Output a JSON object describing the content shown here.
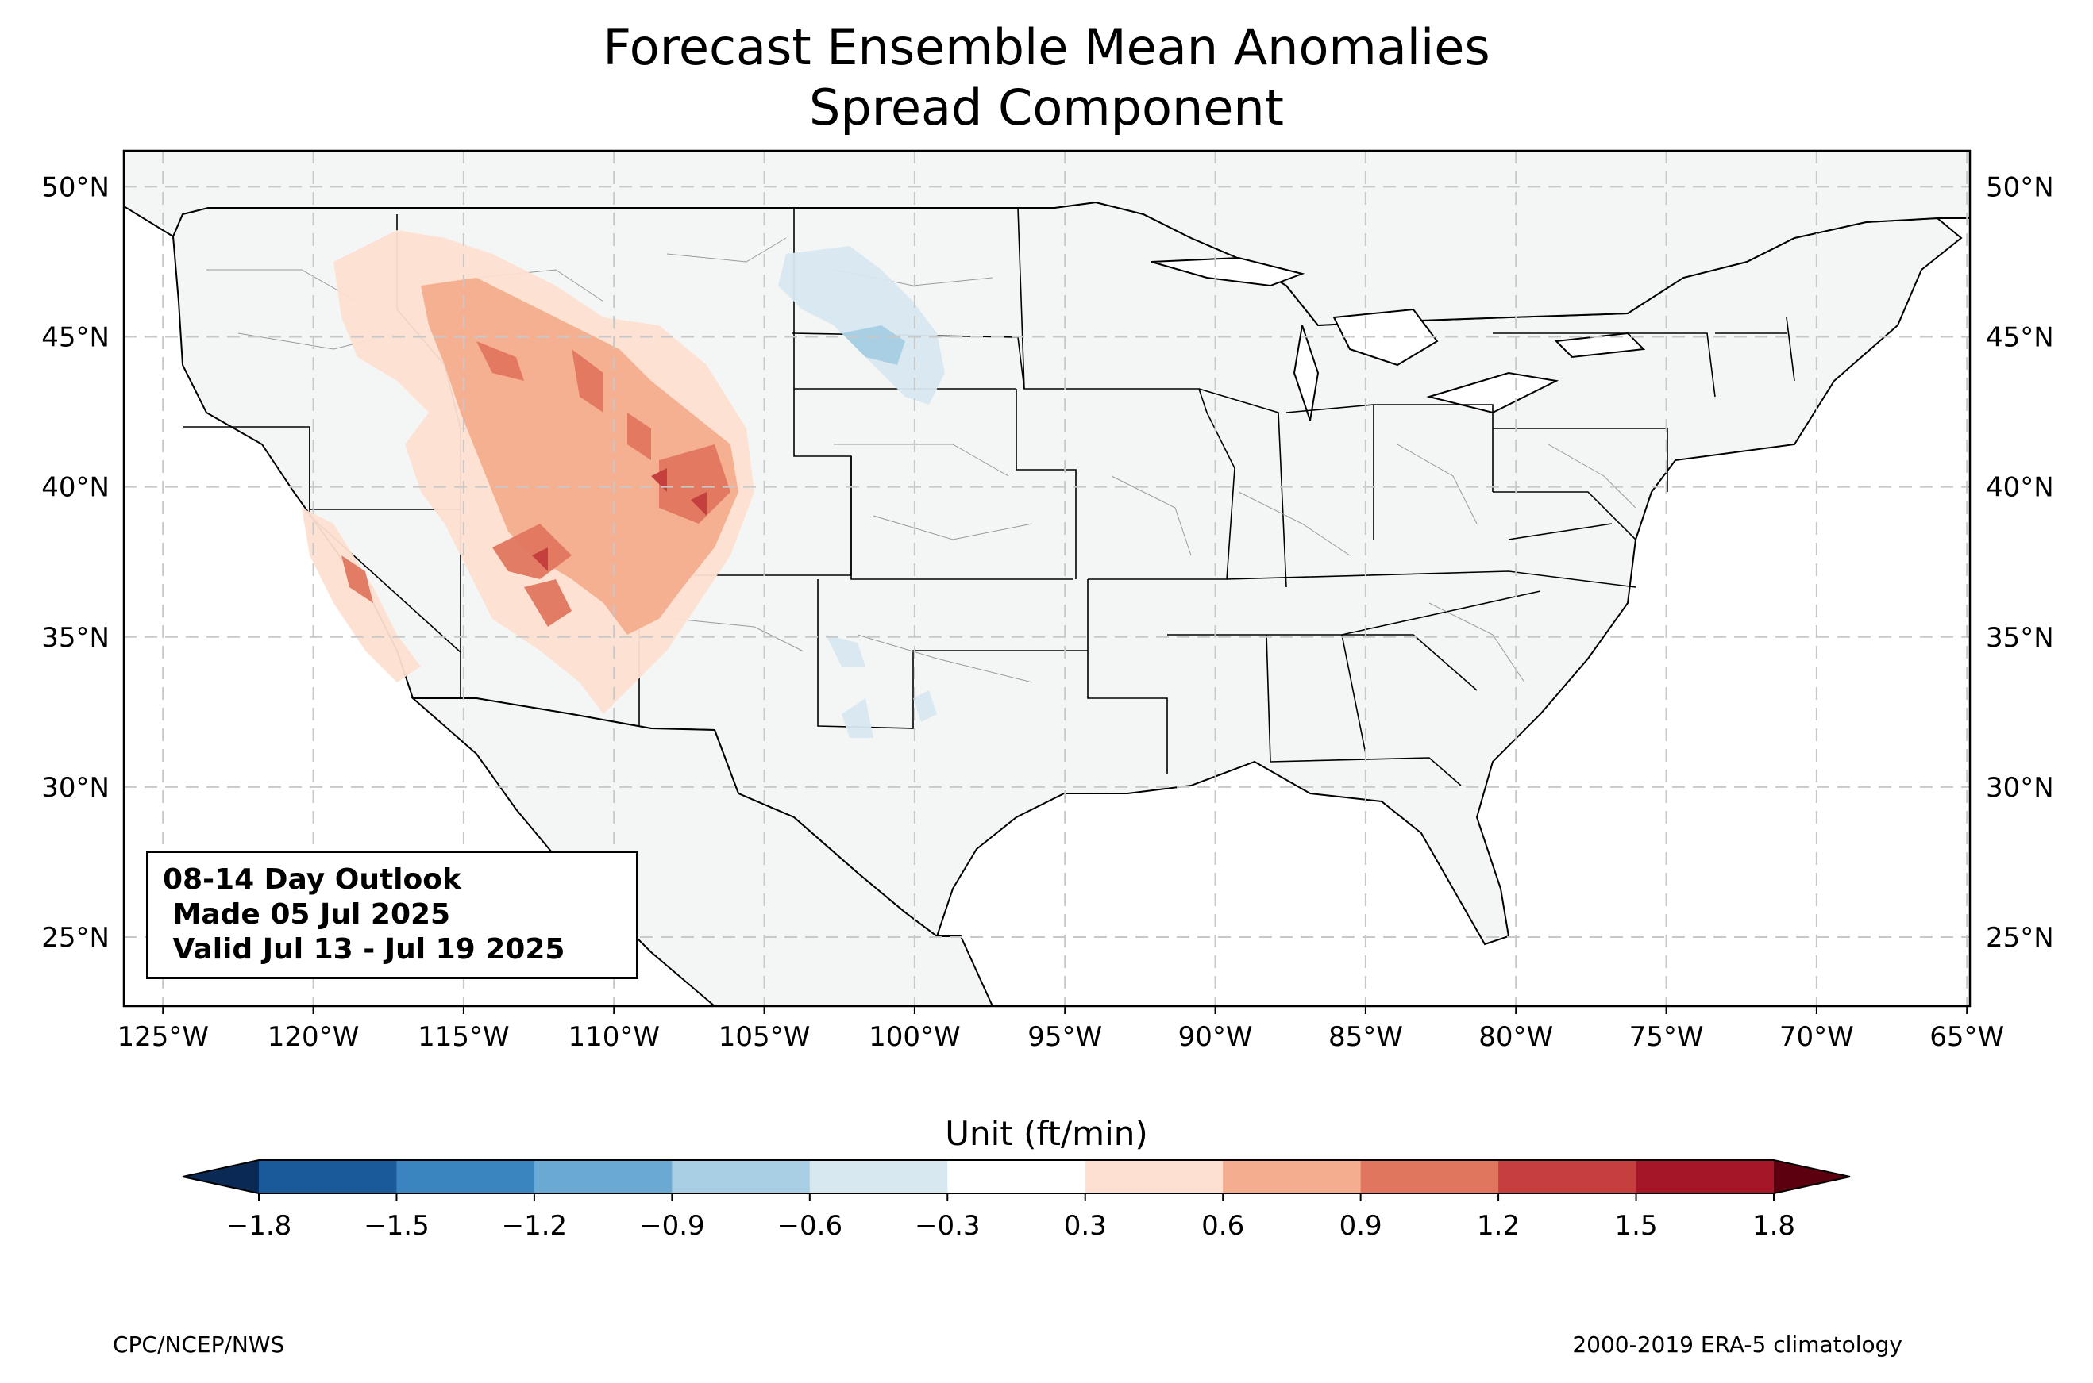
{
  "title_line1": "Forecast Ensemble Mean Anomalies",
  "title_line2": "Spread Component",
  "map": {
    "lon_range": [
      -126.3,
      -64.9
    ],
    "lat_range": [
      22.7,
      51.2
    ],
    "lon_ticks": [
      "125°W",
      "120°W",
      "115°W",
      "110°W",
      "105°W",
      "100°W",
      "95°W",
      "90°W",
      "85°W",
      "80°W",
      "75°W",
      "70°W",
      "65°W"
    ],
    "lat_ticks": [
      "50°N",
      "45°N",
      "40°N",
      "35°N",
      "30°N",
      "25°N"
    ],
    "gridlines": "dashed",
    "land_color": "#f4f6f6"
  },
  "outlook": {
    "line1": "08-14 Day Outlook",
    "line2": " Made 05 Jul 2025",
    "line3": " Valid Jul 13 - Jul 19 2025"
  },
  "colorbar": {
    "label": "Unit (ft/min)",
    "ticks": [
      "−1.8",
      "−1.5",
      "−1.2",
      "−0.9",
      "−0.6",
      "−0.3",
      "0.3",
      "0.6",
      "0.9",
      "1.2",
      "1.5",
      "1.8"
    ],
    "colors": [
      "#1b5a9a",
      "#3a85c0",
      "#6aa9d1",
      "#a9cfe4",
      "#d8e8f0",
      "#ffffff",
      "#fde0d2",
      "#f4ad8e",
      "#e0765e",
      "#c53f3e",
      "#a51628"
    ],
    "under_color": "#0a2a55",
    "over_color": "#5c0010"
  },
  "credits": {
    "left": "CPC/NCEP/NWS",
    "right": "2000-2019 ERA-5 climatology"
  }
}
